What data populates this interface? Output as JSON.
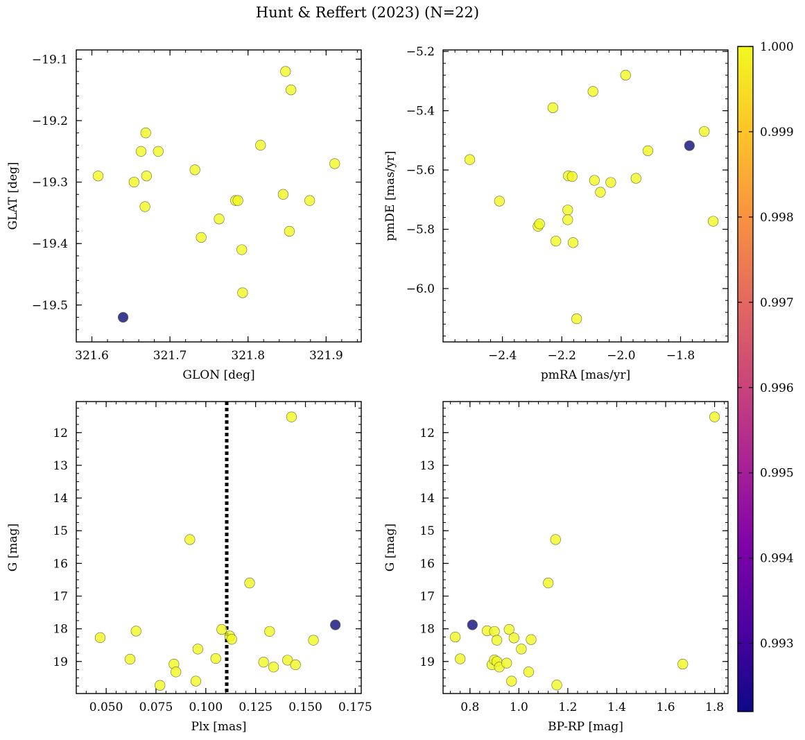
{
  "title": "Hunt & Reffert (2023) (N=22)",
  "colors": {
    "high": "#f0f921",
    "low": "#2c2c8c",
    "dotted_line": "#000000"
  },
  "chart_data": [
    {
      "type": "scatter",
      "id": "sky",
      "xlabel": "GLON [deg]",
      "ylabel": "GLAT [deg]",
      "xlim": [
        321.58,
        321.945
      ],
      "ylim": [
        -19.56,
        -19.085
      ],
      "xticks": [
        321.6,
        321.7,
        321.8,
        321.9
      ],
      "xtick_labels": [
        "321.6",
        "321.7",
        "321.8",
        "321.9"
      ],
      "yticks": [
        -19.1,
        -19.2,
        -19.3,
        -19.4,
        -19.5
      ],
      "ytick_labels": [
        "−19.1",
        "−19.2",
        "−19.3",
        "−19.4",
        "−19.5"
      ],
      "x": [
        321.608,
        321.654,
        321.663,
        321.668,
        321.669,
        321.67,
        321.685,
        321.732,
        321.74,
        321.763,
        321.784,
        321.787,
        321.792,
        321.793,
        321.816,
        321.845,
        321.848,
        321.853,
        321.855,
        321.879,
        321.911,
        321.64
      ],
      "y": [
        -19.29,
        -19.3,
        -19.25,
        -19.34,
        -19.22,
        -19.29,
        -19.25,
        -19.28,
        -19.39,
        -19.36,
        -19.33,
        -19.33,
        -19.41,
        -19.48,
        -19.24,
        -19.32,
        -19.12,
        -19.38,
        -19.15,
        -19.33,
        -19.27,
        -19.52
      ],
      "prob": [
        1,
        1,
        1,
        1,
        1,
        1,
        1,
        1,
        1,
        1,
        1,
        1,
        1,
        1,
        1,
        1,
        1,
        1,
        1,
        1,
        1,
        0.9922
      ]
    },
    {
      "type": "scatter",
      "id": "pm",
      "xlabel": "pmRA [mas/yr]",
      "ylabel": "pmDE [mas/yr]",
      "xlim": [
        -2.6,
        -1.64
      ],
      "ylim": [
        -6.18,
        -5.195
      ],
      "xticks": [
        -2.4,
        -2.2,
        -2.0,
        -1.8
      ],
      "xtick_labels": [
        "−2.4",
        "−2.2",
        "−2.0",
        "−1.8"
      ],
      "yticks": [
        -5.2,
        -5.4,
        -5.6,
        -5.8,
        -6.0
      ],
      "ytick_labels": [
        "−5.2",
        "−5.4",
        "−5.6",
        "−5.8",
        "−6.0"
      ],
      "x": [
        -2.51,
        -2.41,
        -2.28,
        -2.275,
        -2.23,
        -2.22,
        -2.18,
        -2.18,
        -2.178,
        -2.165,
        -2.162,
        -2.15,
        -2.095,
        -2.09,
        -2.07,
        -2.035,
        -1.985,
        -1.95,
        -1.91,
        -1.72,
        -1.69,
        -1.77
      ],
      "y": [
        -5.565,
        -5.705,
        -5.79,
        -5.782,
        -5.39,
        -5.84,
        -5.735,
        -5.768,
        -5.62,
        -5.622,
        -5.845,
        -6.102,
        -5.335,
        -5.635,
        -5.675,
        -5.642,
        -5.28,
        -5.628,
        -5.535,
        -5.47,
        -5.773,
        -5.518
      ],
      "prob": [
        1,
        1,
        1,
        1,
        1,
        1,
        1,
        1,
        1,
        1,
        1,
        1,
        1,
        1,
        1,
        1,
        1,
        1,
        1,
        1,
        1,
        0.9922
      ]
    },
    {
      "type": "scatter",
      "id": "plx_g",
      "xlabel": "Plx [mas]",
      "ylabel": "G [mag]",
      "xlim": [
        0.035,
        0.178
      ],
      "ylim": [
        19.98,
        11.05
      ],
      "y_inverted": true,
      "vline_x": 0.1105,
      "xticks": [
        0.05,
        0.075,
        0.1,
        0.125,
        0.15,
        0.175
      ],
      "xtick_labels": [
        "0.050",
        "0.075",
        "0.100",
        "0.125",
        "0.150",
        "0.175"
      ],
      "yticks": [
        12,
        13,
        14,
        15,
        16,
        17,
        18,
        19
      ],
      "ytick_labels": [
        "12",
        "13",
        "14",
        "15",
        "16",
        "17",
        "18",
        "19"
      ],
      "x": [
        0.047,
        0.062,
        0.065,
        0.077,
        0.084,
        0.085,
        0.092,
        0.095,
        0.096,
        0.105,
        0.108,
        0.112,
        0.113,
        0.122,
        0.129,
        0.132,
        0.134,
        0.141,
        0.143,
        0.145,
        0.154,
        0.165
      ],
      "y": [
        18.27,
        18.93,
        18.07,
        19.73,
        19.08,
        19.32,
        15.27,
        19.6,
        18.62,
        18.91,
        18.02,
        18.22,
        18.32,
        16.6,
        19.02,
        18.08,
        19.17,
        18.96,
        11.52,
        19.1,
        18.35,
        17.88
      ],
      "prob": [
        1,
        1,
        1,
        1,
        1,
        1,
        1,
        1,
        1,
        1,
        1,
        1,
        1,
        1,
        1,
        1,
        1,
        1,
        1,
        1,
        1,
        0.9922
      ]
    },
    {
      "type": "scatter",
      "id": "cmd",
      "xlabel": "BP-RP [mag]",
      "ylabel": "G [mag]",
      "xlim": [
        0.69,
        1.855
      ],
      "ylim": [
        19.98,
        11.05
      ],
      "y_inverted": true,
      "xticks": [
        0.8,
        1.0,
        1.2,
        1.4,
        1.6,
        1.8
      ],
      "xtick_labels": [
        "0.8",
        "1.0",
        "1.2",
        "1.4",
        "1.6",
        "1.8"
      ],
      "yticks": [
        12,
        13,
        14,
        15,
        16,
        17,
        18,
        19
      ],
      "ytick_labels": [
        "12",
        "13",
        "14",
        "15",
        "16",
        "17",
        "18",
        "19"
      ],
      "x": [
        0.74,
        0.76,
        0.87,
        0.89,
        0.9,
        0.9,
        0.91,
        0.91,
        0.92,
        0.95,
        0.96,
        0.97,
        0.98,
        1.01,
        1.04,
        1.05,
        1.12,
        1.15,
        1.155,
        1.67,
        1.8,
        0.81
      ],
      "y": [
        18.25,
        18.92,
        18.06,
        19.1,
        18.08,
        18.95,
        18.35,
        19.0,
        19.17,
        19.05,
        18.02,
        19.6,
        18.28,
        18.62,
        19.32,
        18.33,
        16.6,
        15.27,
        19.72,
        19.08,
        11.52,
        17.88
      ],
      "prob": [
        1,
        1,
        1,
        1,
        1,
        1,
        1,
        1,
        1,
        1,
        1,
        1,
        1,
        1,
        1,
        1,
        1,
        1,
        1,
        1,
        1,
        0.9922
      ]
    }
  ],
  "colorbar": {
    "vmin": 0.9922,
    "vmax": 1.0,
    "ticks": [
      0.993,
      0.994,
      0.995,
      0.996,
      0.997,
      0.998,
      0.999,
      1.0
    ],
    "tick_labels": [
      "0.993",
      "0.994",
      "0.995",
      "0.996",
      "0.997",
      "0.998",
      "0.999",
      "1.000"
    ]
  }
}
